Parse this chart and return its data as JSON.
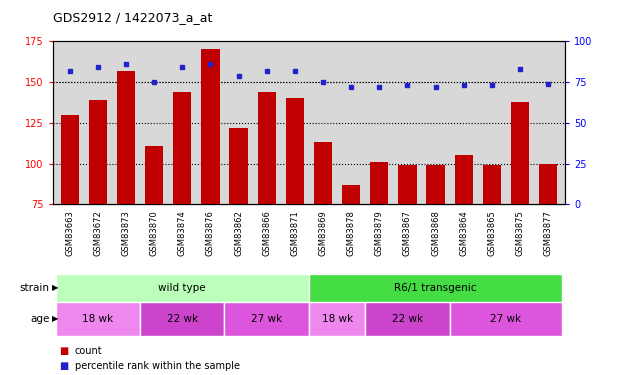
{
  "title": "GDS2912 / 1422073_a_at",
  "samples": [
    "GSM83663",
    "GSM83672",
    "GSM83873",
    "GSM83870",
    "GSM83874",
    "GSM83876",
    "GSM83862",
    "GSM83866",
    "GSM83871",
    "GSM83869",
    "GSM83878",
    "GSM83879",
    "GSM83867",
    "GSM83868",
    "GSM83864",
    "GSM83865",
    "GSM83875",
    "GSM83877"
  ],
  "counts": [
    130,
    139,
    157,
    111,
    144,
    170,
    122,
    144,
    140,
    113,
    87,
    101,
    99,
    99,
    105,
    99,
    138,
    100
  ],
  "percentiles": [
    82,
    84,
    86,
    75,
    84,
    86,
    79,
    82,
    82,
    75,
    72,
    72,
    73,
    72,
    73,
    73,
    83,
    74
  ],
  "ylim_left": [
    75,
    175
  ],
  "ylim_right": [
    0,
    100
  ],
  "yticks_left": [
    75,
    100,
    125,
    150,
    175
  ],
  "yticks_right": [
    0,
    25,
    50,
    75,
    100
  ],
  "bar_color": "#c00000",
  "dot_color": "#2222cc",
  "strain_labels": [
    {
      "label": "wild type",
      "start": 0,
      "end": 9,
      "color": "#bbffbb"
    },
    {
      "label": "R6/1 transgenic",
      "start": 9,
      "end": 18,
      "color": "#44dd44"
    }
  ],
  "age_groups": [
    {
      "label": "18 wk",
      "start": 0,
      "end": 3,
      "color": "#ee88ee"
    },
    {
      "label": "22 wk",
      "start": 3,
      "end": 6,
      "color": "#cc44cc"
    },
    {
      "label": "27 wk",
      "start": 6,
      "end": 9,
      "color": "#dd55dd"
    },
    {
      "label": "18 wk",
      "start": 9,
      "end": 11,
      "color": "#ee88ee"
    },
    {
      "label": "22 wk",
      "start": 11,
      "end": 14,
      "color": "#cc44cc"
    },
    {
      "label": "27 wk",
      "start": 14,
      "end": 18,
      "color": "#dd55dd"
    }
  ],
  "legend_count_label": "count",
  "legend_pct_label": "percentile rank within the sample",
  "strain_row_label": "strain",
  "age_row_label": "age",
  "background_color": "#d8d8d8",
  "xticklabel_bg": "#c8c8c8",
  "gridline_ticks": [
    100,
    125,
    150
  ]
}
